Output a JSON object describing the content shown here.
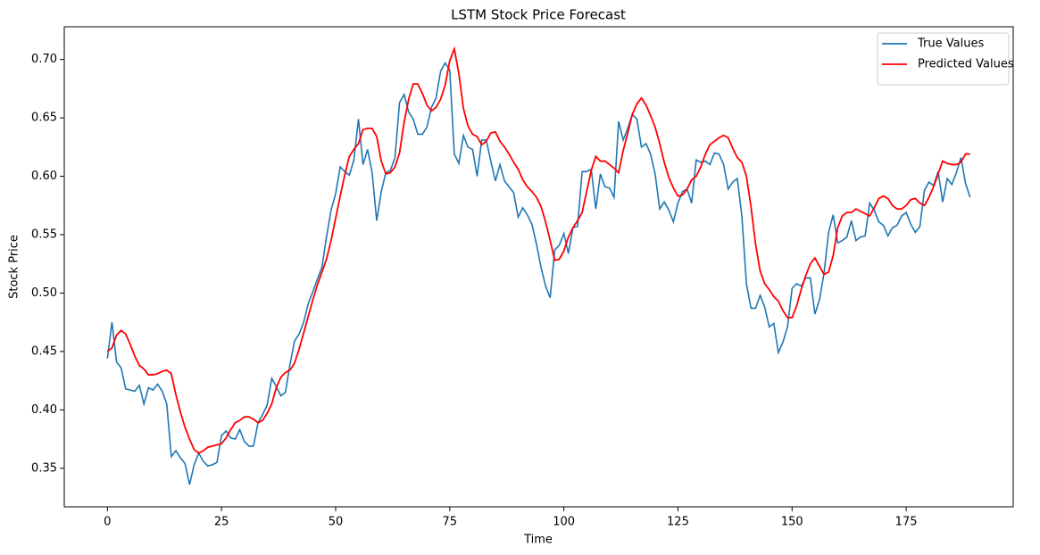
{
  "chart_data": {
    "type": "line",
    "title": "LSTM Stock Price Forecast",
    "x_label": "Time",
    "y_label": "Stock Price",
    "x": [
      0,
      1,
      2,
      3,
      4,
      5,
      6,
      7,
      8,
      9,
      10,
      11,
      12,
      13,
      14,
      15,
      16,
      17,
      18,
      19,
      20,
      21,
      22,
      23,
      24,
      25,
      26,
      27,
      28,
      29,
      30,
      31,
      32,
      33,
      34,
      35,
      36,
      37,
      38,
      39,
      40,
      41,
      42,
      43,
      44,
      45,
      46,
      47,
      48,
      49,
      50,
      51,
      52,
      53,
      54,
      55,
      56,
      57,
      58,
      59,
      60,
      61,
      62,
      63,
      64,
      65,
      66,
      67,
      68,
      69,
      70,
      71,
      72,
      73,
      74,
      75,
      76,
      77,
      78,
      79,
      80,
      81,
      82,
      83,
      84,
      85,
      86,
      87,
      88,
      89,
      90,
      91,
      92,
      93,
      94,
      95,
      96,
      97,
      98,
      99,
      100,
      101,
      102,
      103,
      104,
      105,
      106,
      107,
      108,
      109,
      110,
      111,
      112,
      113,
      114,
      115,
      116,
      117,
      118,
      119,
      120,
      121,
      122,
      123,
      124,
      125,
      126,
      127,
      128,
      129,
      130,
      131,
      132,
      133,
      134,
      135,
      136,
      137,
      138,
      139,
      140,
      141,
      142,
      143,
      144,
      145,
      146,
      147,
      148,
      149,
      150,
      151,
      152,
      153,
      154,
      155,
      156,
      157,
      158,
      159,
      160,
      161,
      162,
      163,
      164,
      165,
      166,
      167,
      168,
      169,
      170,
      171,
      172,
      173,
      174,
      175,
      176,
      177,
      178,
      179,
      180,
      181,
      182,
      183,
      184,
      185,
      186,
      187,
      188,
      189
    ],
    "series": [
      {
        "name": "True Values",
        "color": "#1f77b4",
        "values": [
          0.444,
          0.475,
          0.441,
          0.436,
          0.418,
          0.417,
          0.416,
          0.421,
          0.405,
          0.419,
          0.417,
          0.422,
          0.416,
          0.405,
          0.36,
          0.365,
          0.359,
          0.354,
          0.336,
          0.353,
          0.363,
          0.356,
          0.352,
          0.353,
          0.355,
          0.378,
          0.382,
          0.376,
          0.375,
          0.383,
          0.373,
          0.369,
          0.369,
          0.389,
          0.396,
          0.404,
          0.427,
          0.42,
          0.412,
          0.415,
          0.439,
          0.459,
          0.465,
          0.475,
          0.491,
          0.501,
          0.512,
          0.522,
          0.548,
          0.571,
          0.585,
          0.608,
          0.604,
          0.601,
          0.614,
          0.649,
          0.61,
          0.623,
          0.603,
          0.562,
          0.587,
          0.603,
          0.605,
          0.616,
          0.663,
          0.67,
          0.655,
          0.649,
          0.636,
          0.636,
          0.642,
          0.659,
          0.667,
          0.69,
          0.697,
          0.691,
          0.619,
          0.611,
          0.635,
          0.625,
          0.623,
          0.6,
          0.631,
          0.631,
          0.613,
          0.596,
          0.61,
          0.596,
          0.591,
          0.586,
          0.565,
          0.573,
          0.567,
          0.559,
          0.542,
          0.522,
          0.506,
          0.496,
          0.537,
          0.541,
          0.551,
          0.534,
          0.556,
          0.557,
          0.604,
          0.604,
          0.606,
          0.572,
          0.602,
          0.591,
          0.59,
          0.582,
          0.647,
          0.631,
          0.641,
          0.653,
          0.649,
          0.625,
          0.628,
          0.619,
          0.602,
          0.572,
          0.578,
          0.571,
          0.561,
          0.577,
          0.587,
          0.589,
          0.577,
          0.614,
          0.612,
          0.613,
          0.61,
          0.62,
          0.619,
          0.61,
          0.589,
          0.595,
          0.598,
          0.566,
          0.508,
          0.487,
          0.487,
          0.498,
          0.488,
          0.471,
          0.474,
          0.449,
          0.458,
          0.471,
          0.504,
          0.508,
          0.506,
          0.513,
          0.513,
          0.482,
          0.494,
          0.517,
          0.552,
          0.567,
          0.543,
          0.545,
          0.548,
          0.562,
          0.545,
          0.548,
          0.549,
          0.577,
          0.571,
          0.561,
          0.558,
          0.549,
          0.556,
          0.558,
          0.566,
          0.569,
          0.559,
          0.552,
          0.557,
          0.588,
          0.595,
          0.592,
          0.604,
          0.578,
          0.598,
          0.593,
          0.603,
          0.616,
          0.594,
          0.582
        ]
      },
      {
        "name": "Predicted Values",
        "color": "#ff0000",
        "values": [
          0.45,
          0.453,
          0.464,
          0.468,
          0.465,
          0.456,
          0.446,
          0.438,
          0.435,
          0.43,
          0.43,
          0.431,
          0.433,
          0.434,
          0.431,
          0.413,
          0.398,
          0.385,
          0.375,
          0.366,
          0.363,
          0.365,
          0.368,
          0.369,
          0.37,
          0.371,
          0.376,
          0.383,
          0.389,
          0.391,
          0.394,
          0.394,
          0.392,
          0.389,
          0.391,
          0.397,
          0.405,
          0.419,
          0.428,
          0.432,
          0.434,
          0.44,
          0.452,
          0.466,
          0.48,
          0.494,
          0.507,
          0.518,
          0.529,
          0.545,
          0.564,
          0.583,
          0.601,
          0.617,
          0.623,
          0.628,
          0.64,
          0.641,
          0.641,
          0.634,
          0.613,
          0.602,
          0.603,
          0.608,
          0.62,
          0.646,
          0.666,
          0.679,
          0.679,
          0.671,
          0.661,
          0.656,
          0.659,
          0.666,
          0.678,
          0.699,
          0.709,
          0.688,
          0.658,
          0.643,
          0.636,
          0.634,
          0.627,
          0.63,
          0.637,
          0.638,
          0.63,
          0.625,
          0.619,
          0.612,
          0.606,
          0.597,
          0.591,
          0.587,
          0.582,
          0.574,
          0.561,
          0.545,
          0.528,
          0.529,
          0.536,
          0.548,
          0.556,
          0.562,
          0.569,
          0.587,
          0.605,
          0.617,
          0.613,
          0.613,
          0.61,
          0.607,
          0.603,
          0.622,
          0.637,
          0.653,
          0.662,
          0.667,
          0.661,
          0.652,
          0.642,
          0.628,
          0.612,
          0.599,
          0.59,
          0.583,
          0.584,
          0.589,
          0.597,
          0.6,
          0.608,
          0.619,
          0.627,
          0.63,
          0.633,
          0.635,
          0.633,
          0.624,
          0.616,
          0.612,
          0.6,
          0.574,
          0.542,
          0.519,
          0.508,
          0.503,
          0.497,
          0.493,
          0.485,
          0.479,
          0.479,
          0.489,
          0.503,
          0.515,
          0.525,
          0.53,
          0.523,
          0.516,
          0.518,
          0.532,
          0.556,
          0.566,
          0.569,
          0.569,
          0.572,
          0.57,
          0.568,
          0.566,
          0.573,
          0.581,
          0.583,
          0.581,
          0.575,
          0.572,
          0.572,
          0.575,
          0.58,
          0.581,
          0.577,
          0.575,
          0.582,
          0.591,
          0.602,
          0.613,
          0.611,
          0.61,
          0.61,
          0.612,
          0.619,
          0.619
        ]
      }
    ],
    "xlim": [
      -9.45,
      198.45
    ],
    "xticks": [
      0,
      25,
      50,
      75,
      100,
      125,
      150,
      175
    ],
    "ylim": [
      0.317,
      0.728
    ],
    "yticks": [
      0.35,
      {
        "value": 0.4,
        "label": "0.40"
      },
      0.45,
      {
        "value": 0.5,
        "label": "0.50"
      },
      0.55,
      {
        "value": 0.6,
        "label": "0.60"
      },
      0.65,
      {
        "value": 0.7,
        "label": "0.70"
      }
    ],
    "legend": "upper right"
  }
}
